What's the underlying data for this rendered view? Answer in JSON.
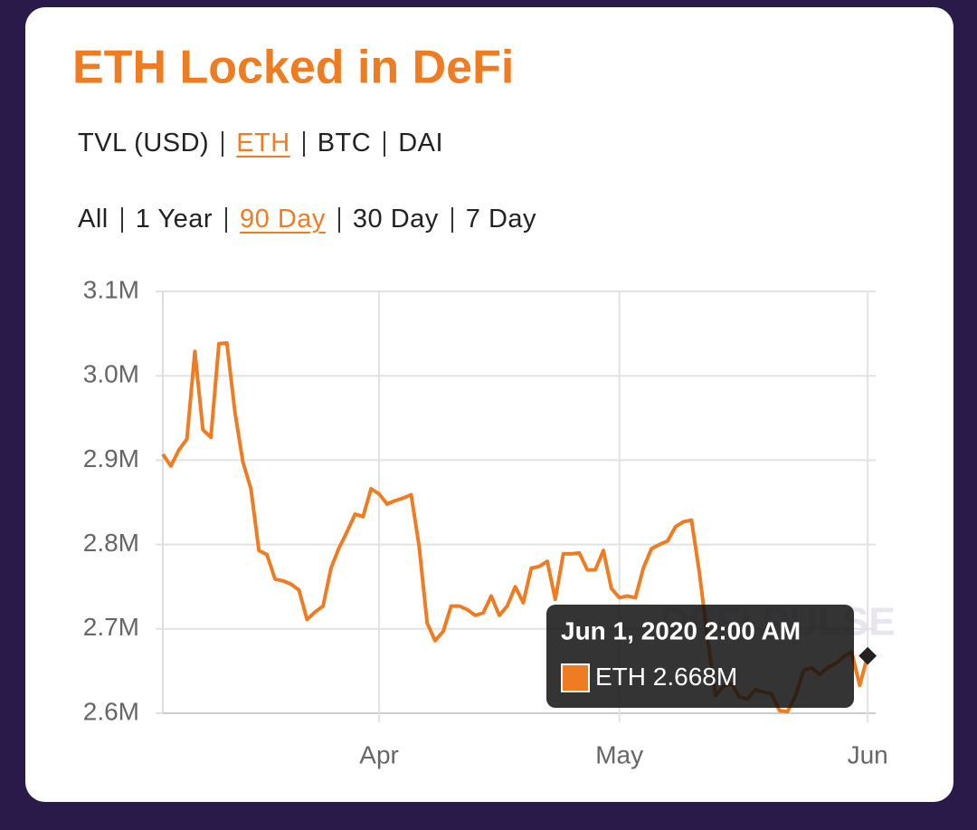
{
  "tabs": {
    "metric": {
      "items": [
        "TVL (USD)",
        "ETH",
        "BTC",
        "DAI"
      ],
      "active": 1
    },
    "range": {
      "items": [
        "All",
        "1 Year",
        "90 Day",
        "30 Day",
        "7 Day"
      ],
      "active": 2
    }
  },
  "chart_data": {
    "type": "line",
    "title": "ETH Locked in DeFi",
    "watermark": "DEFI PULSE",
    "x": [
      "2020-03-05",
      "2020-03-06",
      "2020-03-07",
      "2020-03-08",
      "2020-03-09",
      "2020-03-10",
      "2020-03-11",
      "2020-03-12",
      "2020-03-13",
      "2020-03-14",
      "2020-03-15",
      "2020-03-16",
      "2020-03-17",
      "2020-03-18",
      "2020-03-19",
      "2020-03-20",
      "2020-03-21",
      "2020-03-22",
      "2020-03-23",
      "2020-03-24",
      "2020-03-25",
      "2020-03-26",
      "2020-03-27",
      "2020-03-28",
      "2020-03-29",
      "2020-03-30",
      "2020-03-31",
      "2020-04-01",
      "2020-04-02",
      "2020-04-03",
      "2020-04-04",
      "2020-04-05",
      "2020-04-06",
      "2020-04-07",
      "2020-04-08",
      "2020-04-09",
      "2020-04-10",
      "2020-04-11",
      "2020-04-12",
      "2020-04-13",
      "2020-04-14",
      "2020-04-15",
      "2020-04-16",
      "2020-04-17",
      "2020-04-18",
      "2020-04-19",
      "2020-04-20",
      "2020-04-21",
      "2020-04-22",
      "2020-04-23",
      "2020-04-24",
      "2020-04-25",
      "2020-04-26",
      "2020-04-27",
      "2020-04-28",
      "2020-04-29",
      "2020-04-30",
      "2020-05-01",
      "2020-05-02",
      "2020-05-03",
      "2020-05-04",
      "2020-05-05",
      "2020-05-06",
      "2020-05-07",
      "2020-05-08",
      "2020-05-09",
      "2020-05-10",
      "2020-05-11",
      "2020-05-12",
      "2020-05-13",
      "2020-05-14",
      "2020-05-15",
      "2020-05-16",
      "2020-05-17",
      "2020-05-18",
      "2020-05-19",
      "2020-05-20",
      "2020-05-21",
      "2020-05-22",
      "2020-05-23",
      "2020-05-24",
      "2020-05-25",
      "2020-05-26",
      "2020-05-27",
      "2020-05-28",
      "2020-05-29",
      "2020-05-30",
      "2020-05-31",
      "2020-06-01"
    ],
    "series": [
      {
        "name": "ETH",
        "color": "#f07c22",
        "values": [
          2907000,
          2893000,
          2912000,
          2925000,
          3029000,
          2936000,
          2927000,
          3038000,
          3039000,
          2957000,
          2898000,
          2866000,
          2793000,
          2788000,
          2759000,
          2757000,
          2753000,
          2746000,
          2711000,
          2720000,
          2727000,
          2772000,
          2796000,
          2815000,
          2836000,
          2833000,
          2866000,
          2860000,
          2848000,
          2852000,
          2855000,
          2859000,
          2798000,
          2707000,
          2686000,
          2697000,
          2727000,
          2727000,
          2723000,
          2716000,
          2719000,
          2739000,
          2716000,
          2727000,
          2750000,
          2731000,
          2772000,
          2774000,
          2780000,
          2735000,
          2789000,
          2789000,
          2790000,
          2770000,
          2770000,
          2793000,
          2748000,
          2737000,
          2739000,
          2737000,
          2772000,
          2795000,
          2800000,
          2804000,
          2821000,
          2827000,
          2829000,
          2766000,
          2689000,
          2621000,
          2632000,
          2635000,
          2619000,
          2617000,
          2628000,
          2625000,
          2623000,
          2603000,
          2602000,
          2621000,
          2651000,
          2654000,
          2646000,
          2654000,
          2659000,
          2667000,
          2673000,
          2633000,
          2668000
        ]
      }
    ],
    "xlim": [
      "2020-03-05",
      "2020-06-02"
    ],
    "xticks": [
      {
        "value": "2020-04-01",
        "label": "Apr"
      },
      {
        "value": "2020-05-01",
        "label": "May"
      },
      {
        "value": "2020-06-01",
        "label": "Jun"
      }
    ],
    "ylim": [
      2600000,
      3100000
    ],
    "yticks": [
      {
        "value": 2600000,
        "label": "2.6M"
      },
      {
        "value": 2700000,
        "label": "2.7M"
      },
      {
        "value": 2800000,
        "label": "2.8M"
      },
      {
        "value": 2900000,
        "label": "2.9M"
      },
      {
        "value": 3000000,
        "label": "3.0M"
      },
      {
        "value": 3100000,
        "label": "3.1M"
      }
    ],
    "grid": true,
    "tooltip": {
      "title": "Jun 1, 2020 2:00 AM",
      "point": 88,
      "value_label": "2.668M"
    }
  }
}
